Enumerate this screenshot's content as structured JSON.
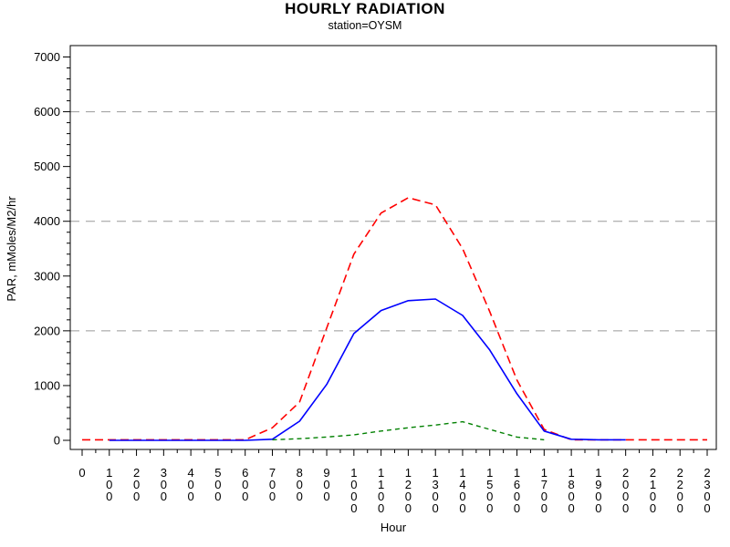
{
  "chart_data": {
    "type": "line",
    "title": "HOURLY RADIATION",
    "subtitle": "station=OYSM",
    "xlabel": "Hour",
    "ylabel": "PAR, mMoles/M2/hr",
    "x_tick_labels": [
      "0",
      "100",
      "200",
      "300",
      "400",
      "500",
      "600",
      "700",
      "800",
      "900",
      "1000",
      "1100",
      "1200",
      "1300",
      "1400",
      "1500",
      "1600",
      "1700",
      "1800",
      "1900",
      "2000",
      "2100",
      "2200",
      "2300"
    ],
    "y_tick_labels": [
      "0",
      "1000",
      "2000",
      "3000",
      "4000",
      "5000",
      "6000",
      "7000"
    ],
    "ylim": [
      0,
      7000
    ],
    "xlim_hours": [
      0,
      23
    ],
    "y_minor_tick_step": 200,
    "reference_lines": [
      2000,
      4000,
      6000
    ],
    "grid_color": "#999999",
    "axis_color": "#000000",
    "legend": "none",
    "frame": true,
    "series": [
      {
        "name": "red-dashed-series",
        "style": "dashed",
        "color": "#ff0000",
        "hours": [
          0,
          1,
          2,
          3,
          4,
          5,
          6,
          7,
          8,
          9,
          10,
          11,
          12,
          13,
          14,
          15,
          16,
          17,
          18,
          19,
          20,
          21,
          22,
          23
        ],
        "values": [
          10,
          10,
          10,
          10,
          10,
          10,
          10,
          230,
          700,
          2050,
          3400,
          4150,
          4430,
          4300,
          3500,
          2350,
          1100,
          200,
          10,
          10,
          10,
          10,
          10,
          10
        ]
      },
      {
        "name": "blue-solid-series",
        "style": "solid",
        "color": "#0000ff",
        "hours": [
          1,
          2,
          3,
          4,
          5,
          6,
          7,
          8,
          9,
          10,
          11,
          12,
          13,
          14,
          15,
          16,
          17,
          18,
          19,
          20
        ],
        "values": [
          0,
          0,
          0,
          0,
          0,
          0,
          20,
          350,
          1020,
          1950,
          2370,
          2550,
          2580,
          2280,
          1650,
          850,
          170,
          20,
          10,
          10
        ]
      },
      {
        "name": "green-dashed-series",
        "style": "dashed",
        "color": "#008000",
        "hours": [
          7,
          8,
          9,
          10,
          11,
          12,
          13,
          14,
          15,
          16,
          17
        ],
        "values": [
          10,
          30,
          60,
          100,
          170,
          230,
          280,
          340,
          200,
          60,
          10
        ]
      }
    ]
  }
}
